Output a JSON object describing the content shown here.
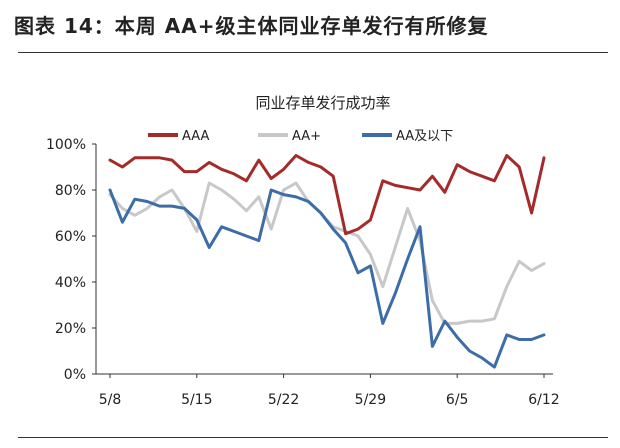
{
  "figure": {
    "caption": "图表 14：本周 AA+级主体同业存单发行有所修复"
  },
  "chart_data": {
    "type": "line",
    "title": "同业存单发行成功率",
    "xlabel": "",
    "ylabel": "",
    "x_ticks": [
      "5/8",
      "5/15",
      "5/22",
      "5/29",
      "6/5",
      "6/12"
    ],
    "y_ticks": [
      "0%",
      "20%",
      "40%",
      "60%",
      "80%",
      "100%"
    ],
    "ylim": [
      0,
      100
    ],
    "legend_position": "top",
    "grid": false,
    "series": [
      {
        "name": "AAA",
        "color": "#a52a2a",
        "values": [
          93,
          90,
          94,
          94,
          94,
          93,
          88,
          88,
          92,
          89,
          87,
          84,
          93,
          85,
          89,
          95,
          92,
          90,
          86,
          61,
          63,
          67,
          84,
          82,
          81,
          80,
          86,
          79,
          91,
          88,
          86,
          84,
          95,
          90,
          70,
          94
        ]
      },
      {
        "name": "AA+",
        "color": "#c8c8c8",
        "values": [
          78,
          72,
          69,
          72,
          77,
          80,
          72,
          62,
          83,
          80,
          76,
          71,
          77,
          63,
          80,
          83,
          75,
          70,
          64,
          62,
          60,
          52,
          38,
          55,
          72,
          58,
          32,
          22,
          22,
          23,
          23,
          24,
          38,
          49,
          45,
          48
        ]
      },
      {
        "name": "AA及以下",
        "color": "#3d6da8",
        "values": [
          80,
          66,
          76,
          75,
          73,
          73,
          72,
          67,
          55,
          64,
          62,
          60,
          58,
          80,
          78,
          77,
          75,
          70,
          63,
          57,
          44,
          47,
          22,
          35,
          50,
          64,
          12,
          23,
          16,
          10,
          7,
          3,
          17,
          15,
          15,
          17
        ]
      }
    ]
  }
}
